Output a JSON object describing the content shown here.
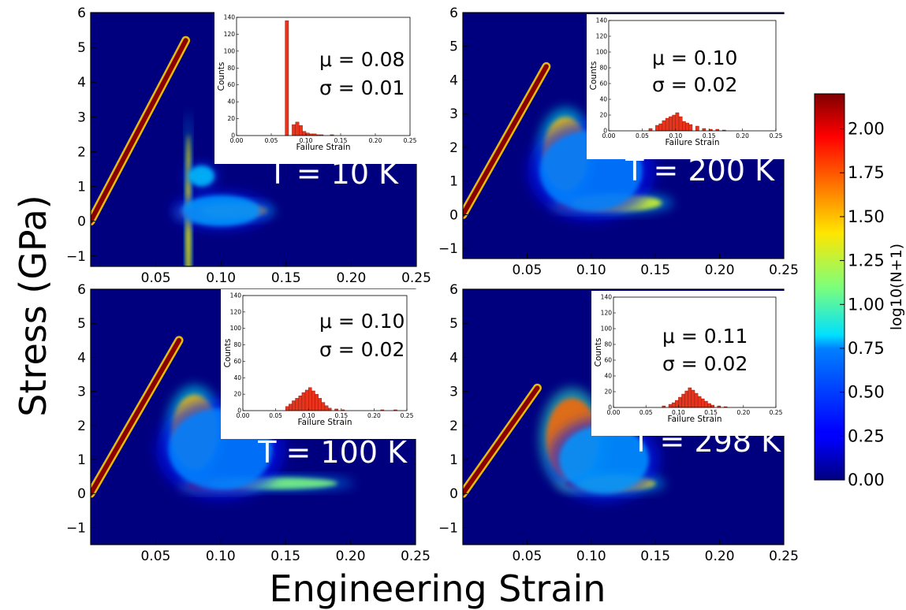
{
  "figure": {
    "ylabel": "Stress (GPa)",
    "xlabel": "Engineering Strain",
    "colorbar": {
      "label": "log10(N+1)",
      "ticks": [
        "0.00",
        "0.25",
        "0.50",
        "0.75",
        "1.00",
        "1.25",
        "1.50",
        "1.75",
        "2.00"
      ],
      "range": [
        0,
        2.2
      ],
      "colormap": "jet"
    }
  },
  "chart_data": [
    {
      "type": "heatmap",
      "panel": "T = 10 K",
      "temperature_label": "T = 10 K",
      "x_ticks": [
        "0.05",
        "0.10",
        "0.15",
        "0.20",
        "0.25"
      ],
      "y_ticks": [
        "6",
        "5",
        "4",
        "3",
        "2",
        "1",
        "0",
        "−1"
      ],
      "xlim": [
        0,
        0.25
      ],
      "ylim": [
        -1.3,
        6
      ],
      "background": "#00007f",
      "elastic_line": {
        "x_end": 0.073,
        "y_end": 5.2
      },
      "failure_strain": 0.073,
      "cloud": [
        {
          "x": 0.075,
          "y": 0.0,
          "w": 0.004,
          "h": 5.0,
          "level": 1.4
        },
        {
          "x": 0.09,
          "y": 0.25,
          "w": 0.04,
          "h": 0.35,
          "level": 2.0
        },
        {
          "x": 0.11,
          "y": 0.3,
          "w": 0.05,
          "h": 0.4,
          "level": 1.5
        },
        {
          "x": 0.1,
          "y": 0.3,
          "w": 0.06,
          "h": 0.9,
          "level": 0.6
        },
        {
          "x": 0.085,
          "y": 1.3,
          "w": 0.02,
          "h": 0.6,
          "level": 0.7
        }
      ],
      "inset": {
        "ylabel": "Counts",
        "xlabel": "Failure Strain",
        "y_ticks": [
          "0",
          "20",
          "40",
          "60",
          "80",
          "100",
          "120",
          "140"
        ],
        "x_ticks": [
          "0.00",
          "0.05",
          "0.10",
          "0.15",
          "0.20",
          "0.25"
        ],
        "ylim": [
          0,
          140
        ],
        "bins": [
          [
            0.07,
            136
          ],
          [
            0.08,
            13
          ],
          [
            0.085,
            16
          ],
          [
            0.09,
            12
          ],
          [
            0.095,
            5
          ],
          [
            0.1,
            3
          ],
          [
            0.105,
            2
          ],
          [
            0.11,
            2
          ],
          [
            0.115,
            1
          ],
          [
            0.12,
            1
          ],
          [
            0.135,
            1
          ]
        ],
        "mu_label": "μ = 0.08",
        "sigma_label": "σ = 0.01"
      }
    },
    {
      "type": "heatmap",
      "panel": "T = 200 K",
      "temperature_label": "T = 200 K",
      "x_ticks": [
        "0.05",
        "0.10",
        "0.15",
        "0.20",
        "0.25"
      ],
      "y_ticks": [
        "6",
        "5",
        "4",
        "3",
        "2",
        "1",
        "0",
        "−1"
      ],
      "xlim": [
        0,
        0.25
      ],
      "ylim": [
        -1.3,
        6
      ],
      "background": "#00007f",
      "elastic_line": {
        "x_end": 0.065,
        "y_end": 4.4
      },
      "failure_strain": 0.065,
      "cloud": [
        {
          "x": 0.08,
          "y": 1.8,
          "w": 0.035,
          "h": 2.2,
          "level": 1.5
        },
        {
          "x": 0.1,
          "y": 0.3,
          "w": 0.05,
          "h": 0.35,
          "level": 2.1
        },
        {
          "x": 0.12,
          "y": 0.35,
          "w": 0.07,
          "h": 0.5,
          "level": 1.3
        },
        {
          "x": 0.1,
          "y": 1.3,
          "w": 0.08,
          "h": 2.4,
          "level": 0.55
        }
      ],
      "inset": {
        "ylabel": "Counts",
        "xlabel": "Failure Strain",
        "y_ticks": [
          "0",
          "20",
          "40",
          "60",
          "80",
          "100",
          "120",
          "140"
        ],
        "x_ticks": [
          "0.00",
          "0.05",
          "0.10",
          "0.15",
          "0.20",
          "0.25"
        ],
        "ylim": [
          0,
          140
        ],
        "bins": [
          [
            0.06,
            3
          ],
          [
            0.07,
            7
          ],
          [
            0.075,
            9
          ],
          [
            0.08,
            13
          ],
          [
            0.085,
            16
          ],
          [
            0.09,
            18
          ],
          [
            0.095,
            20
          ],
          [
            0.1,
            23
          ],
          [
            0.105,
            18
          ],
          [
            0.11,
            12
          ],
          [
            0.115,
            10
          ],
          [
            0.12,
            8
          ],
          [
            0.13,
            6
          ],
          [
            0.14,
            3
          ],
          [
            0.15,
            2
          ],
          [
            0.16,
            2
          ],
          [
            0.17,
            1
          ]
        ],
        "mu_label": "μ = 0.10",
        "sigma_label": "σ = 0.02"
      }
    },
    {
      "type": "heatmap",
      "panel": "T = 100 K",
      "temperature_label": "T = 100 K",
      "x_ticks": [
        "0.05",
        "0.10",
        "0.15",
        "0.20",
        "0.25"
      ],
      "y_ticks": [
        "6",
        "5",
        "4",
        "3",
        "2",
        "1",
        "0",
        "−1"
      ],
      "xlim": [
        0,
        0.25
      ],
      "ylim": [
        -1.5,
        6
      ],
      "background": "#00007f",
      "elastic_line": {
        "x_end": 0.068,
        "y_end": 4.5
      },
      "failure_strain": 0.068,
      "cloud": [
        {
          "x": 0.08,
          "y": 1.8,
          "w": 0.035,
          "h": 2.2,
          "level": 1.5
        },
        {
          "x": 0.1,
          "y": 0.25,
          "w": 0.05,
          "h": 0.35,
          "level": 2.1
        },
        {
          "x": 0.14,
          "y": 0.3,
          "w": 0.1,
          "h": 0.35,
          "level": 1.1
        },
        {
          "x": 0.1,
          "y": 1.3,
          "w": 0.08,
          "h": 2.4,
          "level": 0.55
        }
      ],
      "inset": {
        "ylabel": "Counts",
        "xlabel": "Failure Strain",
        "y_ticks": [
          "0",
          "20",
          "40",
          "60",
          "80",
          "100",
          "120",
          "140"
        ],
        "x_ticks": [
          "0.00",
          "0.05",
          "0.10",
          "0.15",
          "0.20",
          "0.25"
        ],
        "ylim": [
          0,
          140
        ],
        "bins": [
          [
            0.065,
            5
          ],
          [
            0.07,
            8
          ],
          [
            0.075,
            12
          ],
          [
            0.08,
            15
          ],
          [
            0.085,
            18
          ],
          [
            0.09,
            22
          ],
          [
            0.095,
            25
          ],
          [
            0.1,
            28
          ],
          [
            0.105,
            24
          ],
          [
            0.11,
            20
          ],
          [
            0.115,
            15
          ],
          [
            0.12,
            10
          ],
          [
            0.125,
            6
          ],
          [
            0.13,
            3
          ],
          [
            0.14,
            2
          ],
          [
            0.15,
            1
          ],
          [
            0.21,
            1
          ],
          [
            0.23,
            1
          ]
        ],
        "mu_label": "μ = 0.10",
        "sigma_label": "σ = 0.02"
      }
    },
    {
      "type": "heatmap",
      "panel": "T = 298 K",
      "temperature_label": "T = 298 K",
      "x_ticks": [
        "0.05",
        "0.10",
        "0.15",
        "0.20",
        "0.25"
      ],
      "y_ticks": [
        "6",
        "5",
        "4",
        "3",
        "2",
        "1",
        "0",
        "−1"
      ],
      "xlim": [
        0,
        0.25
      ],
      "ylim": [
        -1.5,
        6
      ],
      "background": "#00007f",
      "elastic_line": {
        "x_end": 0.058,
        "y_end": 3.1
      },
      "failure_strain": 0.058,
      "cloud": [
        {
          "x": 0.085,
          "y": 1.6,
          "w": 0.04,
          "h": 2.4,
          "level": 1.7
        },
        {
          "x": 0.105,
          "y": 0.3,
          "w": 0.05,
          "h": 0.4,
          "level": 2.1
        },
        {
          "x": 0.12,
          "y": 0.3,
          "w": 0.06,
          "h": 0.45,
          "level": 1.4
        },
        {
          "x": 0.11,
          "y": 1.0,
          "w": 0.07,
          "h": 2.0,
          "level": 0.6
        }
      ],
      "inset": {
        "ylabel": "Counts",
        "xlabel": "Failure Strain",
        "y_ticks": [
          "0",
          "20",
          "40",
          "60",
          "80",
          "100",
          "120",
          "140"
        ],
        "x_ticks": [
          "0.00",
          "0.05",
          "0.10",
          "0.15",
          "0.20",
          "0.25"
        ],
        "ylim": [
          0,
          140
        ],
        "bins": [
          [
            0.075,
            2
          ],
          [
            0.085,
            4
          ],
          [
            0.09,
            6
          ],
          [
            0.095,
            9
          ],
          [
            0.1,
            13
          ],
          [
            0.105,
            17
          ],
          [
            0.11,
            21
          ],
          [
            0.115,
            25
          ],
          [
            0.12,
            22
          ],
          [
            0.125,
            18
          ],
          [
            0.13,
            14
          ],
          [
            0.135,
            11
          ],
          [
            0.14,
            8
          ],
          [
            0.145,
            5
          ],
          [
            0.15,
            3
          ],
          [
            0.16,
            2
          ],
          [
            0.17,
            1
          ]
        ],
        "mu_label": "μ = 0.11",
        "sigma_label": "σ = 0.02"
      }
    }
  ]
}
